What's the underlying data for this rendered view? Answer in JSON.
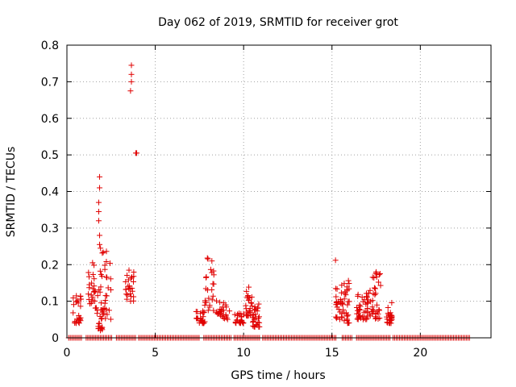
{
  "chart_data": {
    "type": "scatter",
    "title": "Day 062 of 2019, SRMTID for receiver grot",
    "xlabel": "GPS time / hours",
    "ylabel": "SRMTID / TECUs",
    "xlim": [
      0,
      24
    ],
    "ylim": [
      0,
      0.8
    ],
    "xticks": [
      0,
      5,
      10,
      15,
      20
    ],
    "yticks": [
      0,
      0.1,
      0.2,
      0.3,
      0.4,
      0.5,
      0.6,
      0.7,
      0.8
    ],
    "grid": true,
    "marker": "+",
    "color": "#e00000",
    "clusters": [
      {
        "x": [
          0.35,
          0.8
        ],
        "y": [
          0.04,
          0.115
        ]
      },
      {
        "x": [
          1.2,
          1.7
        ],
        "y": [
          0.08,
          0.22
        ]
      },
      {
        "x": [
          1.7,
          2.0
        ],
        "y": [
          0.02,
          0.22
        ]
      },
      {
        "x": [
          2.0,
          2.5
        ],
        "y": [
          0.05,
          0.24
        ]
      },
      {
        "x": [
          3.3,
          3.8
        ],
        "y": [
          0.1,
          0.19
        ]
      },
      {
        "x": [
          7.3,
          7.8
        ],
        "y": [
          0.04,
          0.075
        ]
      },
      {
        "x": [
          7.8,
          8.5
        ],
        "y": [
          0.07,
          0.22
        ]
      },
      {
        "x": [
          8.5,
          9.2
        ],
        "y": [
          0.05,
          0.1
        ]
      },
      {
        "x": [
          9.5,
          10.0
        ],
        "y": [
          0.04,
          0.07
        ]
      },
      {
        "x": [
          10.1,
          10.5
        ],
        "y": [
          0.06,
          0.14
        ]
      },
      {
        "x": [
          10.5,
          10.9
        ],
        "y": [
          0.03,
          0.1
        ]
      },
      {
        "x": [
          15.2,
          15.6
        ],
        "y": [
          0.05,
          0.15
        ]
      },
      {
        "x": [
          15.6,
          16.0
        ],
        "y": [
          0.04,
          0.16
        ]
      },
      {
        "x": [
          16.4,
          16.9
        ],
        "y": [
          0.05,
          0.12
        ]
      },
      {
        "x": [
          16.9,
          17.3
        ],
        "y": [
          0.05,
          0.13
        ]
      },
      {
        "x": [
          17.3,
          17.8
        ],
        "y": [
          0.05,
          0.18
        ]
      },
      {
        "x": [
          18.1,
          18.4
        ],
        "y": [
          0.04,
          0.1
        ]
      }
    ],
    "outliers": [
      {
        "x": 1.85,
        "y": 0.44
      },
      {
        "x": 1.85,
        "y": 0.41
      },
      {
        "x": 1.8,
        "y": 0.37
      },
      {
        "x": 1.8,
        "y": 0.345
      },
      {
        "x": 1.8,
        "y": 0.32
      },
      {
        "x": 1.85,
        "y": 0.28
      },
      {
        "x": 1.85,
        "y": 0.255
      },
      {
        "x": 1.9,
        "y": 0.245
      },
      {
        "x": 3.65,
        "y": 0.745
      },
      {
        "x": 3.65,
        "y": 0.72
      },
      {
        "x": 3.65,
        "y": 0.7
      },
      {
        "x": 3.6,
        "y": 0.675
      },
      {
        "x": 3.95,
        "y": 0.505
      },
      {
        "x": 3.9,
        "y": 0.505
      },
      {
        "x": 15.2,
        "y": 0.212
      },
      {
        "x": 7.95,
        "y": 0.218
      },
      {
        "x": 17.5,
        "y": 0.18
      }
    ],
    "zero_line": {
      "y": 0,
      "x_start": 0.1,
      "x_end": 22.8,
      "gaps": [
        [
          0.9,
          1.05
        ],
        [
          2.6,
          2.75
        ],
        [
          3.9,
          4.05
        ],
        [
          7.5,
          7.7
        ],
        [
          9.3,
          9.45
        ],
        [
          10.9,
          11.05
        ],
        [
          15.3,
          15.5
        ],
        [
          16.2,
          16.35
        ],
        [
          18.3,
          18.45
        ]
      ]
    }
  }
}
